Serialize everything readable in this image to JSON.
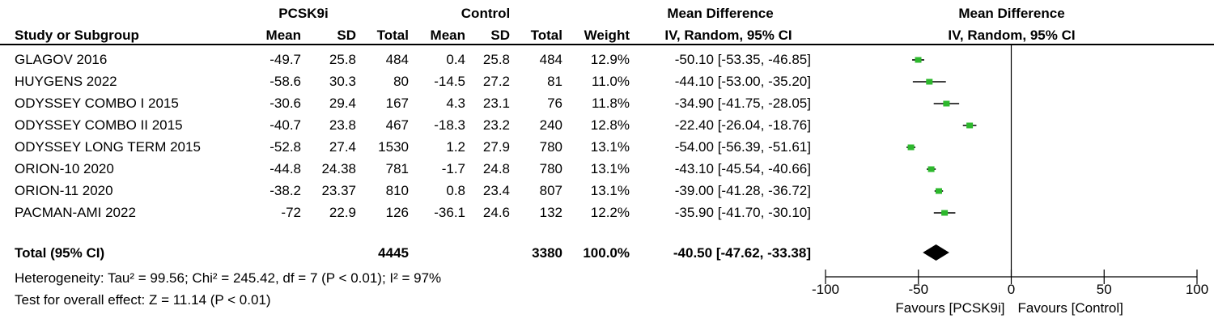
{
  "header": {
    "group1": "PCSK9i",
    "group2": "Control",
    "effect_title": "Mean Difference",
    "effect_sub": "IV, Random, 95% CI",
    "plot_title": "Mean Difference",
    "plot_sub": "IV, Random, 95% CI",
    "col_study": "Study or Subgroup",
    "col_mean1": "Mean",
    "col_sd1": "SD",
    "col_total1": "Total",
    "col_mean2": "Mean",
    "col_sd2": "SD",
    "col_total2": "Total",
    "col_weight": "Weight"
  },
  "rows": [
    {
      "study": "GLAGOV 2016",
      "mean1": "-49.7",
      "sd1": "25.8",
      "n1": "484",
      "mean2": "0.4",
      "sd2": "25.8",
      "n2": "484",
      "weight": "12.9%",
      "ci": "-50.10 [-53.35, -46.85]"
    },
    {
      "study": "HUYGENS 2022",
      "mean1": "-58.6",
      "sd1": "30.3",
      "n1": "80",
      "mean2": "-14.5",
      "sd2": "27.2",
      "n2": "81",
      "weight": "11.0%",
      "ci": "-44.10 [-53.00, -35.20]"
    },
    {
      "study": "ODYSSEY COMBO I 2015",
      "mean1": "-30.6",
      "sd1": "29.4",
      "n1": "167",
      "mean2": "4.3",
      "sd2": "23.1",
      "n2": "76",
      "weight": "11.8%",
      "ci": "-34.90 [-41.75, -28.05]"
    },
    {
      "study": "ODYSSEY COMBO II 2015",
      "mean1": "-40.7",
      "sd1": "23.8",
      "n1": "467",
      "mean2": "-18.3",
      "sd2": "23.2",
      "n2": "240",
      "weight": "12.8%",
      "ci": "-22.40 [-26.04, -18.76]"
    },
    {
      "study": "ODYSSEY LONG TERM 2015",
      "mean1": "-52.8",
      "sd1": "27.4",
      "n1": "1530",
      "mean2": "1.2",
      "sd2": "27.9",
      "n2": "780",
      "weight": "13.1%",
      "ci": "-54.00 [-56.39, -51.61]"
    },
    {
      "study": "ORION-10 2020",
      "mean1": "-44.8",
      "sd1": "24.38",
      "n1": "781",
      "mean2": "-1.7",
      "sd2": "24.8",
      "n2": "780",
      "weight": "13.1%",
      "ci": "-43.10 [-45.54, -40.66]"
    },
    {
      "study": "ORION-11 2020",
      "mean1": "-38.2",
      "sd1": "23.37",
      "n1": "810",
      "mean2": "0.8",
      "sd2": "23.4",
      "n2": "807",
      "weight": "13.1%",
      "ci": "-39.00 [-41.28, -36.72]"
    },
    {
      "study": "PACMAN-AMI 2022",
      "mean1": "-72",
      "sd1": "22.9",
      "n1": "126",
      "mean2": "-36.1",
      "sd2": "24.6",
      "n2": "132",
      "weight": "12.2%",
      "ci": "-35.90 [-41.70, -30.10]"
    }
  ],
  "total": {
    "label": "Total (95% CI)",
    "n1": "4445",
    "n2": "3380",
    "weight": "100.0%",
    "ci": "-40.50 [-47.62, -33.38]"
  },
  "heterogeneity": "Heterogeneity: Tau² = 99.56; Chi² = 245.42, df = 7 (P < 0.01); I² = 97%",
  "overall_effect": "Test for overall effect: Z = 11.14 (P < 0.01)",
  "colors": {
    "point": "#2db82d",
    "line": "#000000",
    "diamond": "#000000"
  },
  "chart_data": {
    "type": "forest",
    "xlim": [
      -100,
      100
    ],
    "ticks": [
      -100,
      -50,
      0,
      50,
      100
    ],
    "tick_labels": [
      "-100",
      "-50",
      "0",
      "50",
      "100"
    ],
    "xlabel_left": "Favours [PCSK9i]",
    "xlabel_right": "Favours [Control]",
    "series": [
      {
        "est": -50.1,
        "lo": -53.35,
        "hi": -46.85
      },
      {
        "est": -44.1,
        "lo": -53.0,
        "hi": -35.2
      },
      {
        "est": -34.9,
        "lo": -41.75,
        "hi": -28.05
      },
      {
        "est": -22.4,
        "lo": -26.04,
        "hi": -18.76
      },
      {
        "est": -54.0,
        "lo": -56.39,
        "hi": -51.61
      },
      {
        "est": -43.1,
        "lo": -45.54,
        "hi": -40.66
      },
      {
        "est": -39.0,
        "lo": -41.28,
        "hi": -36.72
      },
      {
        "est": -35.9,
        "lo": -41.7,
        "hi": -30.1
      }
    ],
    "pooled": {
      "est": -40.5,
      "lo": -47.62,
      "hi": -33.38
    }
  }
}
